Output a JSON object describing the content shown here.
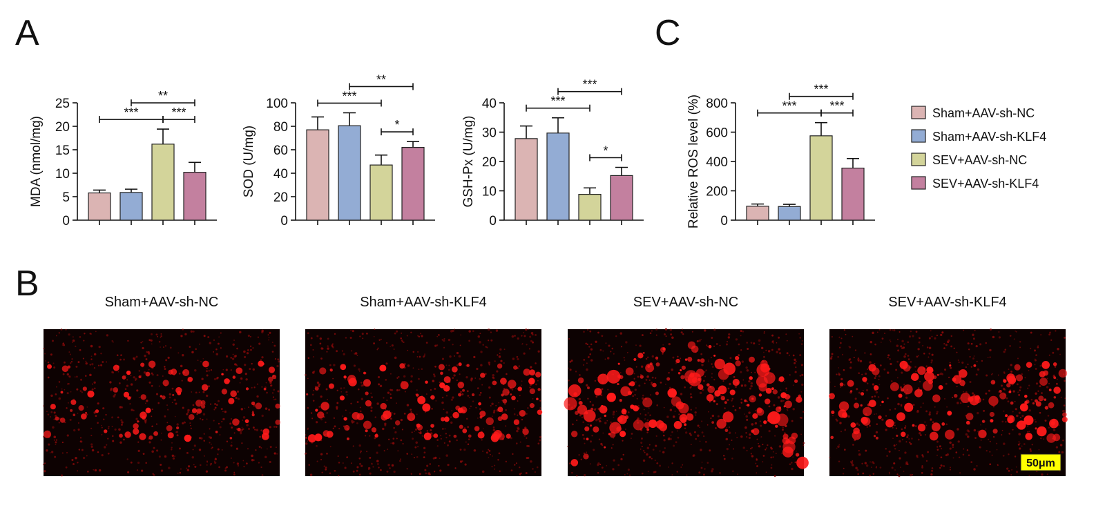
{
  "panel_labels": [
    "A",
    "B",
    "C"
  ],
  "legend": [
    {
      "name": "Sham+AAV-sh-NC",
      "color": "#dbb4b3"
    },
    {
      "name": "Sham+AAV-sh-KLF4",
      "color": "#93acd4"
    },
    {
      "name": "SEV+AAV-sh-NC",
      "color": "#d3d49a"
    },
    {
      "name": "SEV+AAV-sh-KLF4",
      "color": "#c3809f"
    }
  ],
  "chart_data": [
    {
      "type": "bar",
      "y_label": "MDA (nmol/mg)",
      "values": [
        5.8,
        5.9,
        16.2,
        10.2
      ],
      "errors": [
        0.6,
        0.7,
        3.2,
        2.1
      ],
      "ylim": [
        0,
        25
      ],
      "yticks": [
        0,
        5,
        10,
        15,
        20,
        25
      ],
      "significance": [
        {
          "from": 0,
          "to": 2,
          "label": "***"
        },
        {
          "from": 2,
          "to": 3,
          "label": "***"
        },
        {
          "from": 1,
          "to": 3,
          "label": "**"
        }
      ]
    },
    {
      "type": "bar",
      "y_label": "SOD (U/mg)",
      "values": [
        77,
        80.5,
        47,
        62
      ],
      "errors": [
        11,
        11,
        8.5,
        5
      ],
      "ylim": [
        0,
        100
      ],
      "yticks": [
        0,
        20,
        40,
        60,
        80,
        100
      ],
      "significance": [
        {
          "from": 0,
          "to": 2,
          "label": "***"
        },
        {
          "from": 2,
          "to": 3,
          "label": "*"
        },
        {
          "from": 1,
          "to": 3,
          "label": "**"
        }
      ]
    },
    {
      "type": "bar",
      "y_label": "GSH-Px (U/mg)",
      "values": [
        27.8,
        29.7,
        8.8,
        15.2
      ],
      "errors": [
        4.3,
        5.2,
        2.2,
        2.8
      ],
      "ylim": [
        0,
        40
      ],
      "yticks": [
        0,
        10,
        20,
        30,
        40
      ],
      "significance": [
        {
          "from": 0,
          "to": 2,
          "label": "***"
        },
        {
          "from": 2,
          "to": 3,
          "label": "*"
        },
        {
          "from": 1,
          "to": 3,
          "label": "***"
        }
      ]
    },
    {
      "type": "bar",
      "y_label": "Relative ROS level (%)",
      "values": [
        95,
        93,
        575,
        355
      ],
      "errors": [
        15,
        15,
        90,
        65
      ],
      "ylim": [
        0,
        800
      ],
      "yticks": [
        0,
        200,
        400,
        600,
        800
      ],
      "significance": [
        {
          "from": 0,
          "to": 2,
          "label": "***"
        },
        {
          "from": 2,
          "to": 3,
          "label": "***"
        },
        {
          "from": 1,
          "to": 3,
          "label": "***"
        }
      ]
    }
  ],
  "micrographs": {
    "titles": [
      "Sham+AAV-sh-NC",
      "Sham+AAV-sh-KLF4",
      "SEV+AAV-sh-NC",
      "SEV+AAV-sh-KLF4"
    ],
    "scale_bar": "50μm"
  }
}
